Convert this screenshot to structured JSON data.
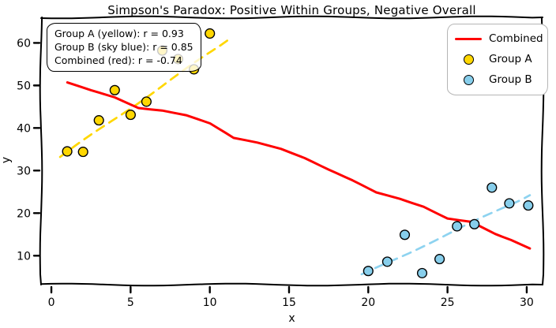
{
  "annotation": {
    "lines": [
      "Group A (yellow): r = 0.93",
      "Group B (sky blue): r = 0.85",
      "Combined (red): r = -0.74"
    ]
  },
  "legend": {
    "items": [
      {
        "label": "Combined",
        "sample": "line",
        "color": "#ff0000"
      },
      {
        "label": "Group A",
        "sample": "marker",
        "color": "#ffd700"
      },
      {
        "label": "Group B",
        "sample": "marker",
        "color": "#87ceeb"
      }
    ]
  },
  "colors": {
    "group_a": "#ffd700",
    "group_a_trend": "#ffd700",
    "group_b": "#87ceeb",
    "group_b_trend": "#8ed3f0",
    "combined": "#ff0000",
    "axis": "#000000"
  },
  "chart_data": {
    "type": "scatter",
    "style": "xkcd-hand-drawn",
    "title": "Simpson's Paradox: Positive Within Groups, Negative Overall",
    "xlabel": "x",
    "ylabel": "y",
    "x_ticks": [
      0,
      5,
      10,
      15,
      20,
      25,
      30
    ],
    "y_ticks": [
      10,
      20,
      30,
      40,
      50,
      60
    ],
    "xlim": [
      -0.65,
      31.0
    ],
    "ylim": [
      3.2,
      66.0
    ],
    "grid": false,
    "legend_position": "upper right",
    "correlations": {
      "group_a": 0.93,
      "group_b": 0.85,
      "combined": -0.74
    },
    "series": [
      {
        "name": "Group A trend",
        "render": "dashed-line",
        "color": "#ffd700",
        "points": [
          [
            0.55,
            33.2
          ],
          [
            11.2,
            60.8
          ]
        ]
      },
      {
        "name": "Group B trend",
        "render": "dashed-line",
        "color": "#8ed3f0",
        "points": [
          [
            19.6,
            5.5
          ],
          [
            30.2,
            24.2
          ]
        ]
      },
      {
        "name": "Combined",
        "render": "line",
        "color": "#ff0000",
        "points": [
          [
            1,
            50.6
          ],
          [
            2.5,
            48.8
          ],
          [
            4,
            47.2
          ],
          [
            5.5,
            44.8
          ],
          [
            7,
            44.2
          ],
          [
            8.5,
            43.0
          ],
          [
            10,
            41.0
          ],
          [
            11.5,
            37.6
          ],
          [
            13,
            36.6
          ],
          [
            14.5,
            35.2
          ],
          [
            16,
            33.0
          ],
          [
            17.5,
            30.2
          ],
          [
            19,
            27.6
          ],
          [
            20.5,
            24.8
          ],
          [
            22,
            23.4
          ],
          [
            23.5,
            21.6
          ],
          [
            25,
            18.8
          ],
          [
            26.5,
            17.9
          ],
          [
            28,
            15.0
          ],
          [
            29,
            13.6
          ],
          [
            30.2,
            11.7
          ]
        ]
      },
      {
        "name": "Group A",
        "render": "scatter",
        "color": "#ffd700",
        "points": [
          [
            1,
            34.5
          ],
          [
            2,
            34.4
          ],
          [
            3,
            41.8
          ],
          [
            4,
            48.9
          ],
          [
            5,
            43.1
          ],
          [
            6,
            46.2
          ],
          [
            7,
            58.2
          ],
          [
            8,
            56.2
          ],
          [
            9,
            53.8
          ],
          [
            10,
            62.2
          ]
        ]
      },
      {
        "name": "Group B",
        "render": "scatter",
        "color": "#87ceeb",
        "points": [
          [
            20,
            6.4
          ],
          [
            21.2,
            8.6
          ],
          [
            22.3,
            14.9
          ],
          [
            23.4,
            5.9
          ],
          [
            24.5,
            9.2
          ],
          [
            25.6,
            16.9
          ],
          [
            26.7,
            17.4
          ],
          [
            27.8,
            26.0
          ],
          [
            28.9,
            22.3
          ],
          [
            30.1,
            21.8
          ]
        ]
      }
    ]
  }
}
